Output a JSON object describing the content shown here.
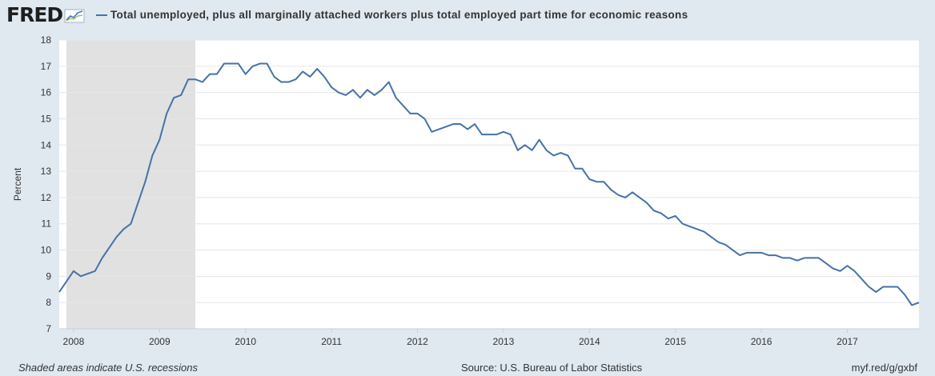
{
  "header": {
    "logo_text": "FRED",
    "legend_label": "Total unemployed, plus all marginally attached workers plus total employed part time for economic reasons"
  },
  "footer": {
    "recession_note": "Shaded areas indicate U.S. recessions",
    "source": "Source: U.S. Bureau of Labor Statistics",
    "short_url": "myf.red/g/gxbf"
  },
  "colors": {
    "line": "#4572a7",
    "recession": "#e1e1e1",
    "plot_bg": "#ffffff",
    "page_bg": "#e1e9f0",
    "grid": "#e6e6e6"
  },
  "chart_data": {
    "type": "line",
    "title": "",
    "xlabel": "",
    "ylabel": "Percent",
    "ylim": [
      7,
      18
    ],
    "y_ticks": [
      7,
      8,
      9,
      10,
      11,
      12,
      13,
      14,
      15,
      16,
      17,
      18
    ],
    "x_ticks": [
      "2008",
      "2009",
      "2010",
      "2011",
      "2012",
      "2013",
      "2014",
      "2015",
      "2016",
      "2017"
    ],
    "x_range": [
      "2007-11",
      "2017-11"
    ],
    "grid": "horizontal",
    "recessions": [
      {
        "start": "2007-12",
        "end": "2009-06"
      }
    ],
    "series": [
      {
        "name": "Total unemployed, plus all marginally attached workers plus total employed part time for economic reasons",
        "x": [
          "2007-11",
          "2007-12",
          "2008-01",
          "2008-02",
          "2008-03",
          "2008-04",
          "2008-05",
          "2008-06",
          "2008-07",
          "2008-08",
          "2008-09",
          "2008-10",
          "2008-11",
          "2008-12",
          "2009-01",
          "2009-02",
          "2009-03",
          "2009-04",
          "2009-05",
          "2009-06",
          "2009-07",
          "2009-08",
          "2009-09",
          "2009-10",
          "2009-11",
          "2009-12",
          "2010-01",
          "2010-02",
          "2010-03",
          "2010-04",
          "2010-05",
          "2010-06",
          "2010-07",
          "2010-08",
          "2010-09",
          "2010-10",
          "2010-11",
          "2010-12",
          "2011-01",
          "2011-02",
          "2011-03",
          "2011-04",
          "2011-05",
          "2011-06",
          "2011-07",
          "2011-08",
          "2011-09",
          "2011-10",
          "2011-11",
          "2011-12",
          "2012-01",
          "2012-02",
          "2012-03",
          "2012-04",
          "2012-05",
          "2012-06",
          "2012-07",
          "2012-08",
          "2012-09",
          "2012-10",
          "2012-11",
          "2012-12",
          "2013-01",
          "2013-02",
          "2013-03",
          "2013-04",
          "2013-05",
          "2013-06",
          "2013-07",
          "2013-08",
          "2013-09",
          "2013-10",
          "2013-11",
          "2013-12",
          "2014-01",
          "2014-02",
          "2014-03",
          "2014-04",
          "2014-05",
          "2014-06",
          "2014-07",
          "2014-08",
          "2014-09",
          "2014-10",
          "2014-11",
          "2014-12",
          "2015-01",
          "2015-02",
          "2015-03",
          "2015-04",
          "2015-05",
          "2015-06",
          "2015-07",
          "2015-08",
          "2015-09",
          "2015-10",
          "2015-11",
          "2015-12",
          "2016-01",
          "2016-02",
          "2016-03",
          "2016-04",
          "2016-05",
          "2016-06",
          "2016-07",
          "2016-08",
          "2016-09",
          "2016-10",
          "2016-11",
          "2016-12",
          "2017-01",
          "2017-02",
          "2017-03",
          "2017-04",
          "2017-05",
          "2017-06",
          "2017-07",
          "2017-08",
          "2017-09",
          "2017-10",
          "2017-11"
        ],
        "values": [
          8.4,
          8.8,
          9.2,
          9.0,
          9.1,
          9.2,
          9.7,
          10.1,
          10.5,
          10.8,
          11.0,
          11.8,
          12.6,
          13.6,
          14.2,
          15.2,
          15.8,
          15.9,
          16.5,
          16.5,
          16.4,
          16.7,
          16.7,
          17.1,
          17.1,
          17.1,
          16.7,
          17.0,
          17.1,
          17.1,
          16.6,
          16.4,
          16.4,
          16.5,
          16.8,
          16.6,
          16.9,
          16.6,
          16.2,
          16.0,
          15.9,
          16.1,
          15.8,
          16.1,
          15.9,
          16.1,
          16.4,
          15.8,
          15.5,
          15.2,
          15.2,
          15.0,
          14.5,
          14.6,
          14.7,
          14.8,
          14.8,
          14.6,
          14.8,
          14.4,
          14.4,
          14.4,
          14.5,
          14.4,
          13.8,
          14.0,
          13.8,
          14.2,
          13.8,
          13.6,
          13.7,
          13.6,
          13.1,
          13.1,
          12.7,
          12.6,
          12.6,
          12.3,
          12.1,
          12.0,
          12.2,
          12.0,
          11.8,
          11.5,
          11.4,
          11.2,
          11.3,
          11.0,
          10.9,
          10.8,
          10.7,
          10.5,
          10.3,
          10.2,
          10.0,
          9.8,
          9.9,
          9.9,
          9.9,
          9.8,
          9.8,
          9.7,
          9.7,
          9.6,
          9.7,
          9.7,
          9.7,
          9.5,
          9.3,
          9.2,
          9.4,
          9.2,
          8.9,
          8.6,
          8.4,
          8.6,
          8.6,
          8.6,
          8.3,
          7.9,
          8.0
        ]
      }
    ]
  }
}
